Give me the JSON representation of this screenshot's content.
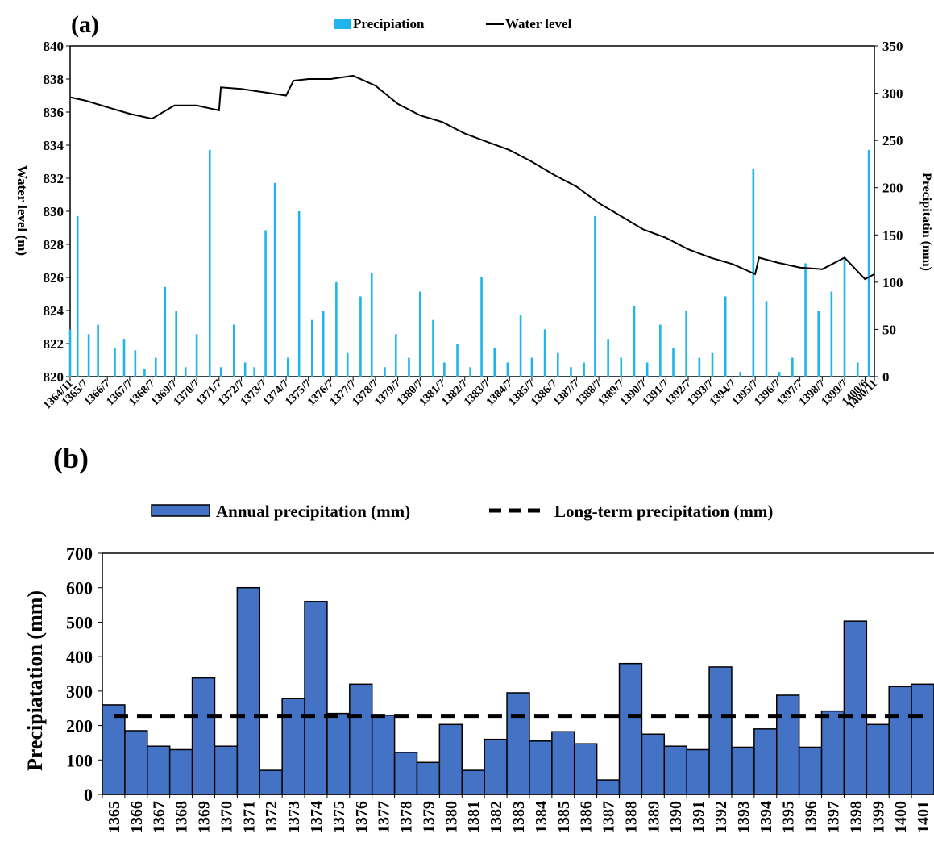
{
  "panel_a": {
    "label": "(a)",
    "legend": {
      "precip": "Precipiation",
      "water": "Water level"
    },
    "y_left_label": "Water level (m)",
    "y_right_label": "Precipitatin (mm)",
    "y_left_ticks": [
      "820",
      "822",
      "824",
      "826",
      "828",
      "830",
      "832",
      "834",
      "836",
      "838",
      "840"
    ],
    "y_right_ticks": [
      "0",
      "50",
      "100",
      "150",
      "200",
      "250",
      "300",
      "350"
    ],
    "x_ticks": [
      "1364/11",
      "1365/7",
      "1366/7",
      "1367/7",
      "1368/7",
      "1369/7",
      "1370/7",
      "1371/7",
      "1372/7",
      "1373/7",
      "1374/7",
      "1375/7",
      "1376/7",
      "1377/7",
      "1378/7",
      "1379/7",
      "1380/7",
      "1381/7",
      "1382/7",
      "1383/7",
      "1384/7",
      "1385/7",
      "1386/7",
      "1387/7",
      "1388/7",
      "1389/7",
      "1390/7",
      "1391/7",
      "1392/7",
      "1393/7",
      "1394/7",
      "1395/7",
      "1396/7",
      "1397/7",
      "1398/7",
      "1399/7",
      "1400/6",
      "1400/11"
    ],
    "colors": {
      "precip": "#1fb4ea",
      "water": "#000000"
    }
  },
  "panel_b": {
    "label": "(b)",
    "legend": {
      "bars": "Annual precipitation (mm)",
      "line": "Long-term precipitation (mm)"
    },
    "y_label": "Precipiatation (mm)",
    "y_ticks": [
      "0",
      "100",
      "200",
      "300",
      "400",
      "500",
      "600",
      "700"
    ],
    "colors": {
      "bar": "#4472c4",
      "line": "#000000"
    }
  },
  "chart_data": [
    {
      "type": "bar+line",
      "title": "",
      "xlabel": "",
      "ylabel": "Water level (m)",
      "y2label": "Precipitatin (mm)",
      "ylim": [
        820,
        840
      ],
      "y2lim": [
        0,
        350
      ],
      "x_tick_labels": [
        "1364/11",
        "1365/7",
        "1366/7",
        "1367/7",
        "1368/7",
        "1369/7",
        "1370/7",
        "1371/7",
        "1372/7",
        "1373/7",
        "1374/7",
        "1375/7",
        "1376/7",
        "1377/7",
        "1378/7",
        "1379/7",
        "1380/7",
        "1381/7",
        "1382/7",
        "1383/7",
        "1384/7",
        "1385/7",
        "1386/7",
        "1387/7",
        "1388/7",
        "1389/7",
        "1390/7",
        "1391/7",
        "1392/7",
        "1393/7",
        "1394/7",
        "1395/7",
        "1396/7",
        "1397/7",
        "1398/7",
        "1399/7",
        "1400/6",
        "1400/11"
      ],
      "series": [
        {
          "name": "Water level",
          "axis": "left",
          "x": [
            "1364/11",
            "1365/7",
            "1366/7",
            "1367/7",
            "1368/7",
            "1369/7",
            "1370/7",
            "1371/7",
            "1371/8",
            "1372/7",
            "1373/7",
            "1374/7",
            "1374/11",
            "1375/7",
            "1376/7",
            "1377/7",
            "1378/7",
            "1379/7",
            "1380/7",
            "1381/7",
            "1382/7",
            "1383/7",
            "1384/7",
            "1385/7",
            "1386/7",
            "1387/7",
            "1388/7",
            "1389/7",
            "1390/7",
            "1391/7",
            "1392/7",
            "1393/7",
            "1394/7",
            "1395/7",
            "1395/9",
            "1396/7",
            "1397/7",
            "1398/7",
            "1399/7",
            "1400/6",
            "1400/11"
          ],
          "values": [
            836.9,
            836.7,
            836.3,
            835.9,
            835.6,
            836.4,
            836.4,
            836.1,
            837.5,
            837.4,
            837.2,
            837.0,
            837.9,
            838.0,
            838.0,
            838.2,
            837.6,
            836.5,
            835.8,
            835.4,
            834.7,
            834.2,
            833.7,
            833.0,
            832.2,
            831.5,
            830.5,
            829.7,
            828.9,
            828.4,
            827.7,
            827.2,
            826.8,
            826.2,
            827.2,
            826.9,
            826.6,
            826.5,
            827.2,
            825.9,
            826.2
          ]
        },
        {
          "name": "Precipiation",
          "axis": "right",
          "x": [
            "1364/11",
            "1365/3",
            "1365/9",
            "1366/2",
            "1366/11",
            "1367/4",
            "1367/10",
            "1368/3",
            "1368/9",
            "1369/2",
            "1369/8",
            "1370/1",
            "1370/7",
            "1371/2",
            "1371/8",
            "1372/3",
            "1372/9",
            "1373/2",
            "1373/8",
            "1374/1",
            "1374/8",
            "1375/2",
            "1375/9",
            "1376/3",
            "1376/10",
            "1377/4",
            "1377/11",
            "1378/5",
            "1378/12",
            "1379/6",
            "1380/1",
            "1380/7",
            "1381/2",
            "1381/8",
            "1382/3",
            "1382/10",
            "1383/4",
            "1383/11",
            "1384/6",
            "1385/1",
            "1385/7",
            "1386/2",
            "1386/9",
            "1387/4",
            "1387/11",
            "1388/5",
            "1388/12",
            "1389/7",
            "1390/2",
            "1390/9",
            "1391/4",
            "1391/11",
            "1392/6",
            "1393/1",
            "1393/8",
            "1394/3",
            "1394/11",
            "1395/6",
            "1396/1",
            "1396/8",
            "1397/3",
            "1397/10",
            "1398/5",
            "1398/12",
            "1399/7",
            "1400/2",
            "1400/8"
          ],
          "values": [
            50,
            170,
            45,
            55,
            30,
            40,
            28,
            8,
            20,
            95,
            70,
            10,
            45,
            240,
            10,
            55,
            15,
            10,
            155,
            205,
            20,
            175,
            60,
            70,
            100,
            25,
            85,
            110,
            10,
            45,
            20,
            90,
            60,
            15,
            35,
            10,
            105,
            30,
            15,
            65,
            20,
            50,
            25,
            10,
            15,
            170,
            40,
            20,
            75,
            15,
            55,
            30,
            70,
            20,
            25,
            85,
            5,
            220,
            80,
            5,
            20,
            120,
            70,
            90,
            125,
            15,
            240
          ]
        }
      ]
    },
    {
      "type": "bar+line",
      "title": "",
      "xlabel": "",
      "ylabel": "Precipiatation (mm)",
      "ylim": [
        0,
        700
      ],
      "categories": [
        "1365",
        "1366",
        "1367",
        "1368",
        "1369",
        "1370",
        "1371",
        "1372",
        "1373",
        "1374",
        "1375",
        "1376",
        "1377",
        "1378",
        "1379",
        "1380",
        "1381",
        "1382",
        "1383",
        "1384",
        "1385",
        "1386",
        "1387",
        "1388",
        "1389",
        "1390",
        "1391",
        "1392",
        "1393",
        "1394",
        "1395",
        "1396",
        "1397",
        "1398",
        "1399",
        "1400",
        "1401"
      ],
      "series": [
        {
          "name": "Annual precipitation (mm)",
          "values": [
            260,
            185,
            140,
            130,
            338,
            140,
            600,
            70,
            278,
            560,
            235,
            320,
            230,
            122,
            93,
            203,
            70,
            160,
            295,
            155,
            182,
            147,
            42,
            380,
            175,
            140,
            130,
            370,
            137,
            190,
            288,
            137,
            242,
            503,
            203,
            313,
            320
          ]
        },
        {
          "name": "Long-term precipitation (mm)",
          "values": [
            228,
            228,
            228,
            228,
            228,
            228,
            228,
            228,
            228,
            228,
            228,
            228,
            228,
            228,
            228,
            228,
            228,
            228,
            228,
            228,
            228,
            228,
            228,
            228,
            228,
            228,
            228,
            228,
            228,
            228,
            228,
            228,
            228,
            228,
            228,
            228,
            228
          ]
        }
      ]
    }
  ]
}
